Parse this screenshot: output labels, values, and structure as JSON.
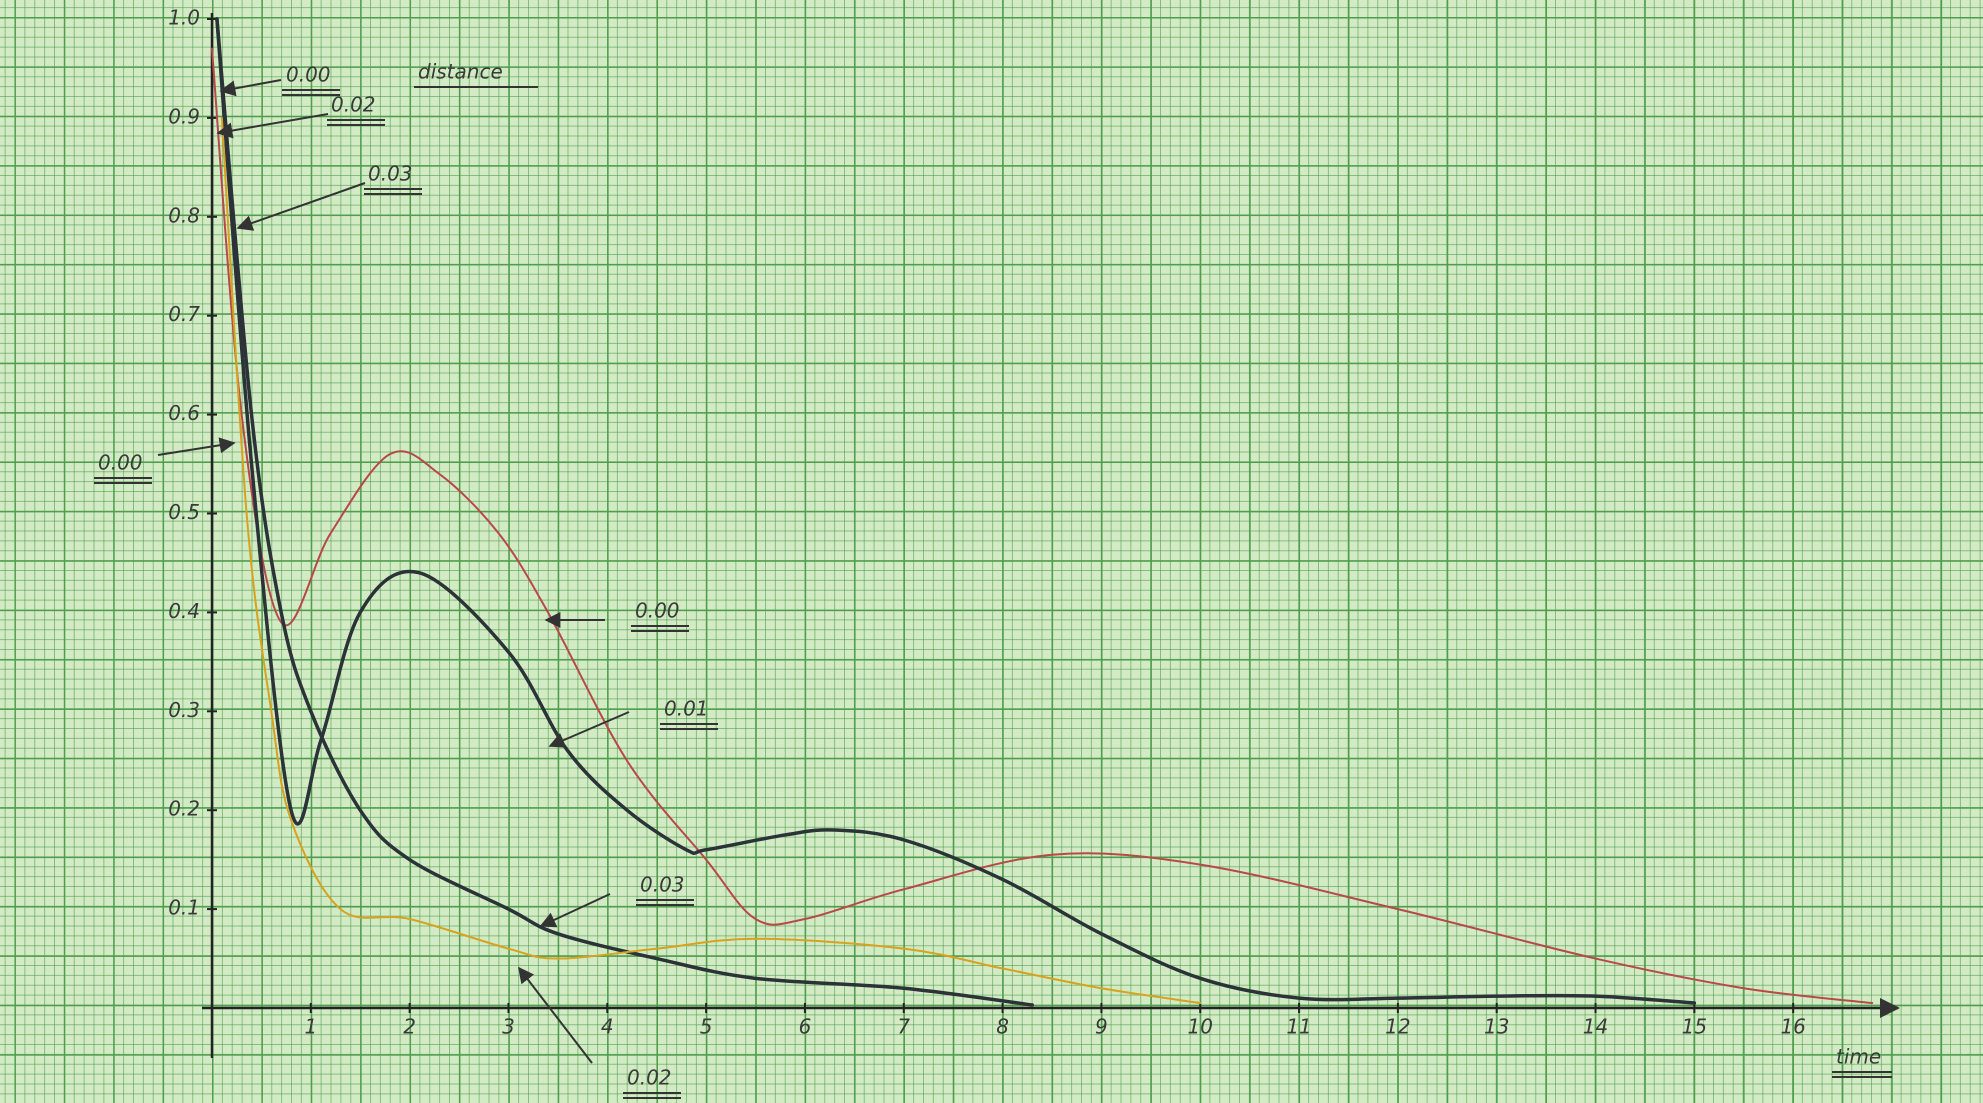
{
  "chart_data": {
    "type": "line",
    "y_label": "distance",
    "x_label": "time",
    "xlim": [
      0,
      17
    ],
    "ylim": [
      0,
      1
    ],
    "xticks": [
      1,
      2,
      3,
      4,
      5,
      6,
      7,
      8,
      9,
      10,
      11,
      12,
      13,
      14,
      15,
      16
    ],
    "yticks": [
      0.1,
      0.2,
      0.3,
      0.4,
      0.5,
      0.6,
      0.7,
      0.8,
      0.9,
      {
        "value": 1,
        "label": "1.0"
      }
    ],
    "annotations": [
      "0.00",
      "0.02",
      "0.03",
      "0.00"
    ],
    "series": [
      {
        "name": "0.00",
        "color": "#b8484a",
        "width": 2,
        "x": [
          0,
          0.3,
          0.7,
          1.2,
          1.8,
          2.3,
          2.9,
          3.4,
          4.2,
          5,
          5.5,
          6,
          7,
          8.5,
          10,
          12,
          14,
          15.5,
          16.8
        ],
        "values": [
          0.97,
          0.6,
          0.39,
          0.48,
          0.56,
          0.54,
          0.48,
          0.4,
          0.25,
          0.15,
          0.09,
          0.09,
          0.12,
          0.155,
          0.145,
          0.1,
          0.05,
          0.02,
          0.005
        ]
      },
      {
        "name": "0.01",
        "color": "#2b3238",
        "width": 3.5,
        "x": [
          0.05,
          0.4,
          0.8,
          1.1,
          1.5,
          2.1,
          3,
          3.6,
          4.2,
          4.8,
          5,
          5.8,
          6.3,
          7,
          8,
          9,
          10,
          11,
          12,
          13,
          14,
          15
        ],
        "values": [
          1,
          0.55,
          0.2,
          0.27,
          0.4,
          0.44,
          0.36,
          0.26,
          0.2,
          0.16,
          0.16,
          0.175,
          0.18,
          0.17,
          0.13,
          0.075,
          0.03,
          0.01,
          0.01,
          0.012,
          0.012,
          0.005
        ]
      },
      {
        "name": "0.03",
        "color": "#2b3238",
        "width": 3.5,
        "x": [
          0.05,
          0.4,
          0.7,
          1,
          1.5,
          2,
          3,
          3.5,
          4.5,
          5.5,
          7,
          8.3
        ],
        "values": [
          1,
          0.6,
          0.4,
          0.3,
          0.2,
          0.15,
          0.1,
          0.075,
          0.05,
          0.03,
          0.02,
          0.003
        ]
      },
      {
        "name": "0.02",
        "color": "#d7a21e",
        "width": 2,
        "x": [
          0.1,
          0.35,
          0.6,
          0.8,
          1.3,
          2,
          3,
          3.5,
          4.5,
          5.5,
          7,
          8,
          9,
          10
        ],
        "values": [
          0.9,
          0.5,
          0.3,
          0.19,
          0.1,
          0.09,
          0.06,
          0.05,
          0.06,
          0.07,
          0.06,
          0.04,
          0.02,
          0.005
        ]
      }
    ]
  }
}
